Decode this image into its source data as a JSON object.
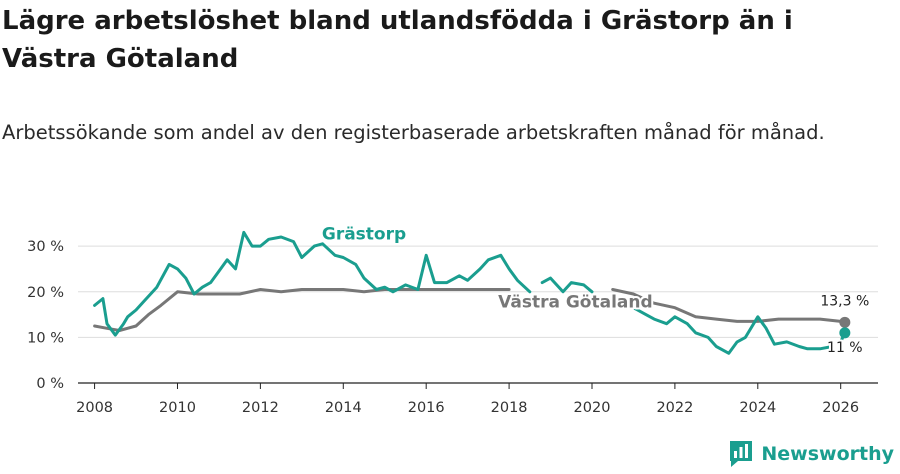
{
  "title": "Lägre arbetslöshet bland utlandsfödda i Grästorp än i Västra Götaland",
  "subtitle": "Arbetssökande som andel av den registerbaserade arbetskraften månad för månad.",
  "brand": {
    "name": "Newsworthy",
    "icon": "newsworthy-logo-icon"
  },
  "colors": {
    "grastorp": "#1a9e8f",
    "vg": "#777777",
    "grid": "#dddddd",
    "axis": "#222222"
  },
  "chart_data": {
    "type": "line",
    "title": "Lägre arbetslöshet bland utlandsfödda i Grästorp än i Västra Götaland",
    "xlabel": "",
    "ylabel": "",
    "xlim": [
      2007.6,
      2026.9
    ],
    "ylim": [
      0,
      32
    ],
    "yticks": [
      0,
      10,
      20,
      30
    ],
    "ytick_labels": [
      "0 %",
      "10 %",
      "20 %",
      "30 %"
    ],
    "xticks": [
      2008,
      2010,
      2012,
      2014,
      2016,
      2018,
      2020,
      2022,
      2024,
      2026
    ],
    "xtick_labels": [
      "2008",
      "2010",
      "2012",
      "2014",
      "2016",
      "2018",
      "2020",
      "2022",
      "2024",
      "2026"
    ],
    "grid": true,
    "series": [
      {
        "name": "Grästorp",
        "color": "#1a9e8f",
        "x": [
          2008.0,
          2008.2,
          2008.3,
          2008.5,
          2008.7,
          2008.8,
          2009.0,
          2009.2,
          2009.5,
          2009.8,
          2010.0,
          2010.2,
          2010.4,
          2010.6,
          2010.8,
          2011.0,
          2011.2,
          2011.4,
          2011.6,
          2011.8,
          2012.0,
          2012.2,
          2012.5,
          2012.8,
          2013.0,
          2013.3,
          2013.5,
          2013.8,
          2014.0,
          2014.3,
          2014.5,
          2014.8,
          2015.0,
          2015.2,
          2015.5,
          2015.8,
          2016.0,
          2016.2,
          2016.5,
          2016.8,
          2017.0,
          2017.3,
          2017.5,
          2017.8,
          2018.0,
          2018.2,
          2018.5,
          null,
          2018.8,
          2019.0,
          2019.3,
          2019.5,
          2019.8,
          2020.0,
          null,
          2020.8,
          2021.0,
          2021.3,
          2021.5,
          2021.8,
          2022.0,
          2022.3,
          2022.5,
          2022.8,
          2023.0,
          2023.3,
          2023.5,
          2023.7,
          2024.0,
          2024.2,
          2024.4,
          2024.7,
          2025.0,
          2025.2,
          2025.5,
          2025.8,
          null,
          2026.0,
          2026.1
        ],
        "values": [
          17,
          18.5,
          13,
          10.5,
          13,
          14.5,
          16,
          18,
          21,
          26,
          25,
          23,
          19.5,
          21,
          22,
          24.5,
          27,
          25,
          33,
          30,
          30,
          31.5,
          32,
          31,
          27.5,
          30,
          30.5,
          28,
          27.5,
          26,
          23,
          20.5,
          21,
          20,
          21.5,
          20.5,
          28,
          22,
          22,
          23.5,
          22.5,
          25,
          27,
          28,
          25,
          22.5,
          20,
          null,
          22,
          23,
          20,
          22,
          21.5,
          20,
          null,
          18,
          16.5,
          15,
          14,
          13,
          14.5,
          13,
          11,
          10,
          8,
          6.5,
          9,
          10,
          14.5,
          12,
          8.5,
          9,
          8,
          7.5,
          7.5,
          8,
          null,
          9,
          11
        ],
        "end_value_label": "11 %"
      },
      {
        "name": "Västra Götaland",
        "color": "#777777",
        "x": [
          2008.0,
          2008.3,
          2008.6,
          2009.0,
          2009.3,
          2009.6,
          2010.0,
          2010.5,
          2011.0,
          2011.5,
          2012.0,
          2012.5,
          2013.0,
          2013.5,
          2014.0,
          2014.5,
          2015.0,
          2015.5,
          2016.0,
          2016.5,
          2017.0,
          2017.5,
          2018.0,
          null,
          2020.5,
          2021.0,
          2021.5,
          2022.0,
          2022.5,
          2023.0,
          2023.5,
          2024.0,
          2024.5,
          2025.0,
          2025.5,
          2026.0,
          2026.1
        ],
        "values": [
          12.5,
          12,
          11.5,
          12.5,
          15,
          17,
          20,
          19.5,
          19.5,
          19.5,
          20.5,
          20,
          20.5,
          20.5,
          20.5,
          20,
          20.5,
          20.5,
          20.5,
          20.5,
          20.5,
          20.5,
          20.5,
          null,
          20.5,
          19.5,
          17.5,
          16.5,
          14.5,
          14,
          13.5,
          13.5,
          14,
          14,
          14,
          13.5,
          13.3
        ],
        "end_value_label": "13,3 %"
      }
    ]
  }
}
